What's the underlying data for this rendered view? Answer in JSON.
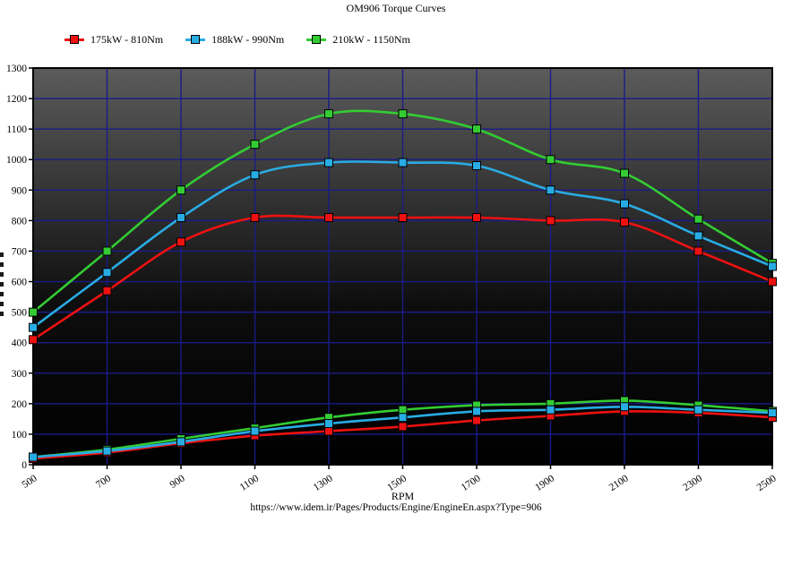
{
  "page": {
    "title": "OM906 Torque Curves",
    "url_caption": "https://www.idem.ir/Pages/Products/Engine/EngineEn.aspx?Type=906"
  },
  "legend": {
    "items": [
      {
        "label": "175kW - 810Nm",
        "color": "#ee1111"
      },
      {
        "label": "188kW - 990Nm",
        "color": "#29ace4"
      },
      {
        "label": "210kW - 1150Nm",
        "color": "#33cc33"
      }
    ]
  },
  "chart_data": {
    "type": "line",
    "title": "OM906 Torque Curves",
    "xlabel": "RPM",
    "ylabel": "",
    "x": [
      500,
      700,
      900,
      1100,
      1300,
      1500,
      1700,
      1900,
      2100,
      2300,
      2500
    ],
    "x_ticks": [
      500,
      700,
      900,
      1100,
      1300,
      1500,
      1700,
      1900,
      2100,
      2300,
      2500
    ],
    "y_ticks": [
      0,
      100,
      200,
      300,
      400,
      500,
      600,
      700,
      800,
      900,
      1000,
      1100,
      1200,
      1300
    ],
    "xlim": [
      500,
      2500
    ],
    "ylim": [
      0,
      1300
    ],
    "grid": true,
    "legend_position": "top-left",
    "grid_color": "#1b1b8a",
    "plot_border_color": "#000000",
    "plot_bg_gradient": [
      "#5b5b5b",
      "#3a3a3a",
      "#0d0d0d",
      "#000000"
    ],
    "marker": "square",
    "series": [
      {
        "name": "175kW - 810Nm torque (Nm)",
        "color": "#ee1111",
        "group": "torque",
        "values": [
          410,
          570,
          730,
          810,
          810,
          810,
          810,
          800,
          795,
          700,
          600
        ]
      },
      {
        "name": "210kW - 1150Nm torque (Nm)",
        "color": "#33cc33",
        "group": "torque",
        "values": [
          500,
          700,
          900,
          1050,
          1150,
          1150,
          1100,
          1000,
          955,
          805,
          660
        ]
      },
      {
        "name": "188kW - 990Nm torque (Nm)",
        "color": "#29ace4",
        "group": "torque",
        "values": [
          450,
          630,
          810,
          950,
          990,
          990,
          980,
          900,
          855,
          750,
          650
        ]
      },
      {
        "name": "175kW power (kW)",
        "color": "#ee1111",
        "group": "power",
        "values": [
          20,
          40,
          70,
          95,
          110,
          125,
          145,
          160,
          175,
          170,
          155
        ]
      },
      {
        "name": "210kW power (kW)",
        "color": "#33cc33",
        "group": "power",
        "values": [
          25,
          50,
          85,
          120,
          155,
          180,
          195,
          200,
          210,
          195,
          175
        ]
      },
      {
        "name": "188kW power (kW)",
        "color": "#29ace4",
        "group": "power",
        "values": [
          25,
          45,
          75,
          110,
          135,
          155,
          175,
          180,
          190,
          180,
          170
        ]
      }
    ]
  }
}
